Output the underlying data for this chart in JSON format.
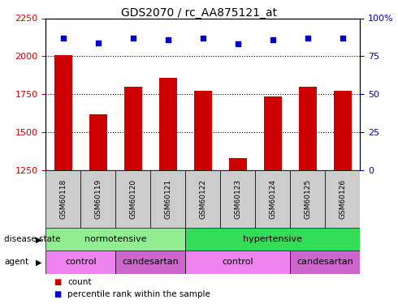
{
  "title": "GDS2070 / rc_AA875121_at",
  "samples": [
    "GSM60118",
    "GSM60119",
    "GSM60120",
    "GSM60121",
    "GSM60122",
    "GSM60123",
    "GSM60124",
    "GSM60125",
    "GSM60126"
  ],
  "counts": [
    2010,
    1620,
    1800,
    1860,
    1775,
    1330,
    1735,
    1800,
    1775
  ],
  "percentiles": [
    87,
    84,
    87,
    86,
    87,
    83,
    86,
    87,
    87
  ],
  "ylim_left": [
    1250,
    2250
  ],
  "ylim_right": [
    0,
    100
  ],
  "yticks_left": [
    1250,
    1500,
    1750,
    2000,
    2250
  ],
  "yticks_right": [
    0,
    25,
    50,
    75,
    100
  ],
  "bar_color": "#cc0000",
  "dot_color": "#0000cc",
  "normotensive_color": "#90ee90",
  "hypertensive_color": "#33dd55",
  "control_color": "#ee82ee",
  "candesartan_color": "#cc66cc",
  "tick_label_color_left": "#cc0000",
  "tick_label_color_right": "#0000cc",
  "background_color": "#ffffff",
  "label_bg_color": "#cccccc"
}
